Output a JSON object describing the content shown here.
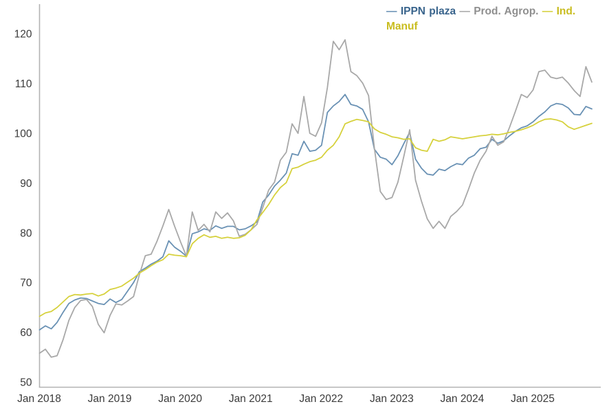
{
  "chart_data": {
    "type": "line",
    "title": "",
    "x_start": "2018-01",
    "x_frequency": "monthly",
    "points_per_series": 95,
    "x_tick_labels": [
      "Jan 2018",
      "Jan 2019",
      "Jan 2020",
      "Jan 2021",
      "Jan 2022",
      "Jan 2023",
      "Jan 2024",
      "Jan 2025"
    ],
    "y_ticks": [
      50,
      60,
      70,
      80,
      90,
      100,
      110,
      120
    ],
    "ylim": [
      50,
      122
    ],
    "grid": false,
    "legend_position": "top-right",
    "axis_color": "#b2b2b2",
    "tick_label_color": "#3a3a3a",
    "series": [
      {
        "name": "IPPN plaza",
        "color": "#6991b4",
        "legend_text_color": "#39648c",
        "values": [
          60.5,
          61.3,
          60.7,
          62.0,
          64.0,
          65.8,
          66.5,
          66.9,
          66.8,
          66.3,
          65.8,
          65.6,
          66.7,
          66.0,
          66.6,
          68.3,
          70.0,
          72.2,
          72.9,
          73.7,
          74.3,
          75.2,
          78.4,
          77.1,
          76.3,
          75.3,
          79.8,
          80.2,
          80.8,
          80.5,
          81.4,
          80.9,
          81.3,
          81.3,
          80.6,
          80.8,
          81.4,
          82.2,
          86.2,
          87.6,
          89.4,
          90.6,
          92.0,
          95.9,
          95.6,
          98.4,
          96.4,
          96.6,
          97.6,
          104.2,
          105.5,
          106.4,
          107.8,
          105.8,
          105.5,
          104.8,
          102.3,
          96.8,
          95.2,
          94.8,
          93.7,
          95.5,
          97.9,
          100.2,
          94.8,
          93.0,
          91.8,
          91.6,
          92.8,
          92.5,
          93.3,
          93.9,
          93.7,
          95.0,
          95.6,
          96.9,
          97.2,
          98.8,
          98.0,
          98.5,
          99.5,
          100.4,
          101.1,
          101.5,
          102.3,
          103.4,
          104.3,
          105.5,
          106.0,
          105.8,
          105.1,
          103.8,
          103.7,
          105.4,
          104.9
        ]
      },
      {
        "name": "Prod. Agrop.",
        "color": "#a8a8a8",
        "legend_text_color": "#8f8f8f",
        "values": [
          55.8,
          56.6,
          55.0,
          55.3,
          58.5,
          62.4,
          65.0,
          66.4,
          66.6,
          65.2,
          61.6,
          59.9,
          63.4,
          65.7,
          65.5,
          66.3,
          67.2,
          71.6,
          75.4,
          75.7,
          78.3,
          81.4,
          84.7,
          81.3,
          78.2,
          75.3,
          84.2,
          80.5,
          81.7,
          80.2,
          84.2,
          82.9,
          84.0,
          82.4,
          79.3,
          79.7,
          80.6,
          81.7,
          85.1,
          88.6,
          90.2,
          94.6,
          96.2,
          101.9,
          100.0,
          107.4,
          100.0,
          99.4,
          102.1,
          109.2,
          118.5,
          116.8,
          118.8,
          112.4,
          111.6,
          110.1,
          107.6,
          97.0,
          88.3,
          86.7,
          87.1,
          90.2,
          95.3,
          100.7,
          90.6,
          86.4,
          82.8,
          80.9,
          82.3,
          80.9,
          83.3,
          84.3,
          85.6,
          88.7,
          92.0,
          94.6,
          96.4,
          99.4,
          97.6,
          98.3,
          101.2,
          104.4,
          107.8,
          107.2,
          108.7,
          112.4,
          112.7,
          111.3,
          111.0,
          111.3,
          110.1,
          108.6,
          107.4,
          113.4,
          110.3
        ]
      },
      {
        "name": "Ind. Manuf",
        "color": "#d6d13c",
        "legend_text_color": "#c9bd20",
        "values": [
          63.2,
          63.9,
          64.2,
          65.0,
          66.1,
          67.2,
          67.6,
          67.5,
          67.7,
          67.8,
          67.3,
          67.7,
          68.6,
          68.9,
          69.3,
          70.1,
          70.9,
          71.9,
          72.6,
          73.4,
          74.1,
          74.6,
          75.7,
          75.5,
          75.4,
          75.2,
          77.8,
          78.9,
          79.6,
          79.1,
          79.3,
          78.9,
          79.1,
          78.9,
          79.0,
          79.5,
          80.6,
          82.6,
          84.1,
          85.7,
          87.6,
          89.1,
          90.1,
          92.9,
          93.2,
          93.8,
          94.3,
          94.6,
          95.2,
          96.6,
          97.6,
          99.3,
          101.9,
          102.4,
          102.8,
          102.6,
          102.3,
          100.9,
          100.2,
          99.8,
          99.3,
          99.1,
          98.8,
          98.9,
          97.1,
          96.6,
          96.4,
          98.8,
          98.4,
          98.7,
          99.3,
          99.1,
          98.9,
          99.1,
          99.3,
          99.5,
          99.6,
          99.8,
          99.7,
          99.9,
          100.2,
          100.4,
          100.7,
          101.1,
          101.6,
          102.3,
          102.8,
          102.9,
          102.7,
          102.3,
          101.3,
          100.8,
          101.2,
          101.6,
          102.0
        ]
      }
    ]
  }
}
